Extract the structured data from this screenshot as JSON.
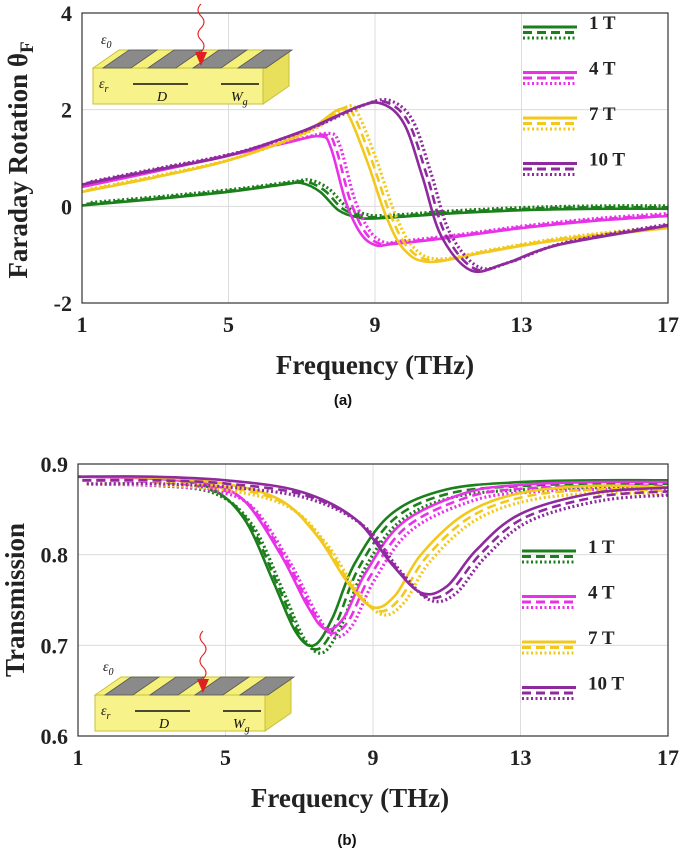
{
  "figure": {
    "caption_a": "(a)",
    "caption_b": "(b)"
  },
  "legend_labels": [
    "1 T",
    "4 T",
    "7 T",
    "10 T"
  ],
  "series_colors": {
    "1 T": "#1b7f1b",
    "4 T": "#e832e8",
    "7 T": "#f2c81c",
    "10 T": "#8e2a9e"
  },
  "inset": {
    "eps0": "ε",
    "eps0_sub": "0",
    "epsr": "ε",
    "epsr_sub": "r",
    "period": "D",
    "width": "W",
    "width_sub": "g"
  },
  "chart_data": [
    {
      "type": "line",
      "id": "faraday",
      "title": "",
      "xlabel": "Frequency (THz)",
      "ylabel": "Faraday Rotation θ",
      "ylabel_sub": "F",
      "xlim": [
        1,
        17
      ],
      "ylim": [
        -2,
        4
      ],
      "xticks": [
        1,
        5,
        9,
        13,
        17
      ],
      "yticks": [
        -2,
        0,
        2,
        4
      ],
      "grid": true,
      "legend_position": "top-right",
      "line_styles": [
        "solid",
        "dashed",
        "dotted"
      ],
      "series": [
        {
          "name": "1 T",
          "x": [
            1,
            3,
            5,
            6.5,
            7,
            7.5,
            8,
            8.5,
            9,
            11,
            13,
            15,
            17
          ],
          "values": [
            0.02,
            0.15,
            0.3,
            0.45,
            0.48,
            0.3,
            -0.08,
            -0.22,
            -0.25,
            -0.15,
            -0.08,
            -0.05,
            -0.05
          ]
        },
        {
          "name": "4 T",
          "x": [
            1,
            3,
            5,
            6.5,
            7.5,
            7.8,
            8.2,
            8.6,
            9,
            9.5,
            11,
            13,
            15,
            17
          ],
          "values": [
            0.4,
            0.72,
            1.05,
            1.3,
            1.45,
            1.2,
            0.1,
            -0.55,
            -0.8,
            -0.78,
            -0.65,
            -0.45,
            -0.3,
            -0.2
          ]
        },
        {
          "name": "7 T",
          "x": [
            1,
            3,
            5,
            7,
            8,
            8.3,
            8.8,
            9.3,
            9.8,
            10.5,
            12,
            14,
            17
          ],
          "values": [
            0.3,
            0.6,
            0.95,
            1.5,
            2.0,
            1.85,
            0.9,
            -0.2,
            -0.9,
            -1.15,
            -0.95,
            -0.7,
            -0.45
          ]
        },
        {
          "name": "10 T",
          "x": [
            1,
            3,
            5,
            7,
            8.5,
            9.2,
            9.8,
            10.3,
            10.8,
            11.6,
            12.5,
            14,
            17
          ],
          "values": [
            0.45,
            0.75,
            1.05,
            1.55,
            2.05,
            2.12,
            1.7,
            0.6,
            -0.6,
            -1.32,
            -1.2,
            -0.8,
            -0.4
          ]
        }
      ]
    },
    {
      "type": "line",
      "id": "transmission",
      "title": "",
      "xlabel": "Frequency (THz)",
      "ylabel": "Transmission",
      "xlim": [
        1,
        17
      ],
      "ylim": [
        0.6,
        0.9
      ],
      "xticks": [
        1,
        5,
        9,
        13,
        17
      ],
      "yticks": [
        0.6,
        0.7,
        0.8,
        0.9
      ],
      "grid": true,
      "legend_position": "right",
      "line_styles": [
        "solid",
        "dashed",
        "dotted"
      ],
      "series": [
        {
          "name": "1 T",
          "x": [
            1,
            3,
            4.5,
            5.5,
            6.3,
            6.9,
            7.4,
            7.9,
            8.5,
            9.5,
            11,
            13,
            15,
            17
          ],
          "values": [
            0.886,
            0.884,
            0.875,
            0.84,
            0.77,
            0.715,
            0.7,
            0.73,
            0.79,
            0.845,
            0.872,
            0.88,
            0.882,
            0.882
          ]
        },
        {
          "name": "4 T",
          "x": [
            1,
            3,
            4.5,
            5.5,
            6.5,
            7.2,
            7.7,
            8.2,
            8.8,
            9.8,
            11.5,
            13,
            15,
            17
          ],
          "values": [
            0.886,
            0.884,
            0.878,
            0.86,
            0.8,
            0.745,
            0.718,
            0.73,
            0.78,
            0.835,
            0.868,
            0.877,
            0.88,
            0.88
          ]
        },
        {
          "name": "7 T",
          "x": [
            1,
            3,
            5,
            6.5,
            7.5,
            8.3,
            9.0,
            9.6,
            10.3,
            11.5,
            13,
            15,
            17
          ],
          "values": [
            0.886,
            0.885,
            0.878,
            0.86,
            0.82,
            0.77,
            0.742,
            0.755,
            0.8,
            0.845,
            0.868,
            0.876,
            0.874
          ]
        },
        {
          "name": "10 T",
          "x": [
            1,
            3,
            5,
            7,
            8.5,
            9.5,
            10.3,
            11.0,
            11.8,
            13,
            15,
            17
          ],
          "values": [
            0.886,
            0.886,
            0.882,
            0.87,
            0.84,
            0.79,
            0.758,
            0.765,
            0.805,
            0.845,
            0.868,
            0.874
          ]
        }
      ]
    }
  ]
}
